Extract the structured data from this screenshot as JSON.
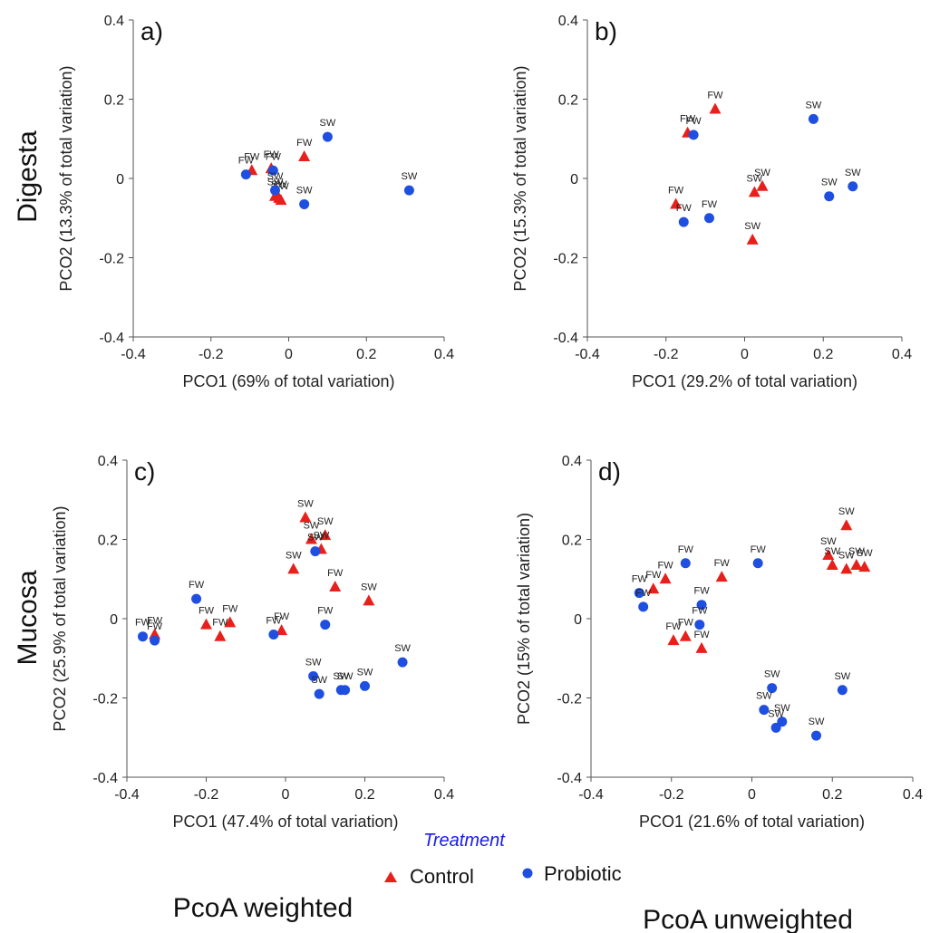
{
  "row_labels": [
    "Digesta",
    "Mucosa"
  ],
  "footers": [
    "PcoA weighted",
    "PcoA unweighted"
  ],
  "legend": {
    "title": "Treatment",
    "items": [
      {
        "name": "Control",
        "marker": "triangle",
        "color": "#e8201c"
      },
      {
        "name": "Probiotic",
        "marker": "circle",
        "color": "#1f4fe0"
      }
    ]
  },
  "chart_data": [
    {
      "type": "scatter",
      "panel": "a)",
      "xlabel": "PCO1 (69% of total variation)",
      "ylabel": "PCO2 (13.3% of total variation)",
      "xlim": [
        -0.4,
        0.4
      ],
      "ylim": [
        -0.4,
        0.4
      ],
      "xticks": [
        -0.4,
        -0.2,
        0,
        0.2,
        0.4
      ],
      "yticks": [
        -0.4,
        -0.2,
        0,
        0.2,
        0.4
      ],
      "series": [
        {
          "name": "Control",
          "points": [
            {
              "x": -0.095,
              "y": 0.02,
              "label": "FW"
            },
            {
              "x": -0.045,
              "y": 0.025,
              "label": "FW"
            },
            {
              "x": 0.04,
              "y": 0.055,
              "label": "FW"
            },
            {
              "x": -0.035,
              "y": -0.045,
              "label": "SW"
            },
            {
              "x": -0.025,
              "y": -0.05,
              "label": "SW"
            },
            {
              "x": -0.02,
              "y": -0.055,
              "label": "SW"
            }
          ]
        },
        {
          "name": "Probiotic",
          "points": [
            {
              "x": -0.11,
              "y": 0.01,
              "label": "FW"
            },
            {
              "x": -0.04,
              "y": 0.02,
              "label": "FW"
            },
            {
              "x": 0.1,
              "y": 0.105,
              "label": "SW"
            },
            {
              "x": 0.04,
              "y": -0.065,
              "label": "SW"
            },
            {
              "x": 0.31,
              "y": -0.03,
              "label": "SW"
            },
            {
              "x": -0.035,
              "y": -0.03,
              "label": "SW"
            }
          ]
        }
      ]
    },
    {
      "type": "scatter",
      "panel": "b)",
      "xlabel": "PCO1 (29.2% of total variation)",
      "ylabel": "PCO2 (15.3% of total variation)",
      "xlim": [
        -0.4,
        0.4
      ],
      "ylim": [
        -0.4,
        0.4
      ],
      "xticks": [
        -0.4,
        -0.2,
        0,
        0.2,
        0.4
      ],
      "yticks": [
        -0.4,
        -0.2,
        0,
        0.2,
        0.4
      ],
      "series": [
        {
          "name": "Control",
          "points": [
            {
              "x": -0.075,
              "y": 0.175,
              "label": "FW"
            },
            {
              "x": -0.145,
              "y": 0.115,
              "label": "FW"
            },
            {
              "x": -0.175,
              "y": -0.065,
              "label": "FW"
            },
            {
              "x": 0.025,
              "y": -0.035,
              "label": "SW"
            },
            {
              "x": 0.045,
              "y": -0.02,
              "label": "SW"
            },
            {
              "x": 0.02,
              "y": -0.155,
              "label": "SW"
            }
          ]
        },
        {
          "name": "Probiotic",
          "points": [
            {
              "x": -0.13,
              "y": 0.11,
              "label": "FW"
            },
            {
              "x": -0.155,
              "y": -0.11,
              "label": "FW"
            },
            {
              "x": -0.09,
              "y": -0.1,
              "label": "FW"
            },
            {
              "x": 0.175,
              "y": 0.15,
              "label": "SW"
            },
            {
              "x": 0.215,
              "y": -0.045,
              "label": "SW"
            },
            {
              "x": 0.275,
              "y": -0.02,
              "label": "SW"
            }
          ]
        }
      ]
    },
    {
      "type": "scatter",
      "panel": "c)",
      "xlabel": "PCO1 (47.4% of total variation)",
      "ylabel": "PCO2 (25.9% of total variation)",
      "xlim": [
        -0.4,
        0.4
      ],
      "ylim": [
        -0.4,
        0.4
      ],
      "xticks": [
        -0.4,
        -0.2,
        0,
        0.2,
        0.4
      ],
      "yticks": [
        -0.4,
        -0.2,
        0,
        0.2,
        0.4
      ],
      "series": [
        {
          "name": "Control",
          "points": [
            {
              "x": 0.05,
              "y": 0.255,
              "label": "SW"
            },
            {
              "x": 0.065,
              "y": 0.2,
              "label": "SW"
            },
            {
              "x": 0.1,
              "y": 0.21,
              "label": "SW"
            },
            {
              "x": 0.09,
              "y": 0.175,
              "label": "SW"
            },
            {
              "x": 0.02,
              "y": 0.125,
              "label": "SW"
            },
            {
              "x": 0.125,
              "y": 0.08,
              "label": "FW"
            },
            {
              "x": 0.21,
              "y": 0.045,
              "label": "SW"
            },
            {
              "x": -0.33,
              "y": -0.04,
              "label": "FW"
            },
            {
              "x": -0.2,
              "y": -0.015,
              "label": "FW"
            },
            {
              "x": -0.14,
              "y": -0.01,
              "label": "FW"
            },
            {
              "x": -0.165,
              "y": -0.045,
              "label": "FW"
            },
            {
              "x": -0.01,
              "y": -0.03,
              "label": "FW"
            }
          ]
        },
        {
          "name": "Probiotic",
          "points": [
            {
              "x": 0.075,
              "y": 0.17,
              "label": "SW"
            },
            {
              "x": -0.225,
              "y": 0.05,
              "label": "FW"
            },
            {
              "x": -0.36,
              "y": -0.045,
              "label": "FW"
            },
            {
              "x": -0.33,
              "y": -0.055,
              "label": "FW"
            },
            {
              "x": -0.03,
              "y": -0.04,
              "label": "FW"
            },
            {
              "x": 0.1,
              "y": -0.015,
              "label": "FW"
            },
            {
              "x": 0.07,
              "y": -0.145,
              "label": "SW"
            },
            {
              "x": 0.085,
              "y": -0.19,
              "label": "SW"
            },
            {
              "x": 0.14,
              "y": -0.18,
              "label": "SW"
            },
            {
              "x": 0.15,
              "y": -0.18,
              "label": "SW"
            },
            {
              "x": 0.2,
              "y": -0.17,
              "label": "SW"
            },
            {
              "x": 0.295,
              "y": -0.11,
              "label": "SW"
            }
          ]
        }
      ]
    },
    {
      "type": "scatter",
      "panel": "d)",
      "xlabel": "PCO1 (21.6% of total variation)",
      "ylabel": "PCO2 (15% of total variation)",
      "xlim": [
        -0.4,
        0.4
      ],
      "ylim": [
        -0.4,
        0.4
      ],
      "xticks": [
        -0.4,
        -0.2,
        0,
        0.2,
        0.4
      ],
      "yticks": [
        -0.4,
        -0.2,
        0,
        0.2,
        0.4
      ],
      "series": [
        {
          "name": "Control",
          "points": [
            {
              "x": -0.215,
              "y": 0.1,
              "label": "FW"
            },
            {
              "x": -0.245,
              "y": 0.075,
              "label": "FW"
            },
            {
              "x": -0.075,
              "y": 0.105,
              "label": "FW"
            },
            {
              "x": -0.195,
              "y": -0.055,
              "label": "FW"
            },
            {
              "x": -0.165,
              "y": -0.045,
              "label": "FW"
            },
            {
              "x": -0.125,
              "y": -0.075,
              "label": "FW"
            },
            {
              "x": 0.235,
              "y": 0.235,
              "label": "SW"
            },
            {
              "x": 0.19,
              "y": 0.16,
              "label": "SW"
            },
            {
              "x": 0.2,
              "y": 0.135,
              "label": "SW"
            },
            {
              "x": 0.235,
              "y": 0.125,
              "label": "SW"
            },
            {
              "x": 0.26,
              "y": 0.135,
              "label": "SW"
            },
            {
              "x": 0.28,
              "y": 0.13,
              "label": "SW"
            }
          ]
        },
        {
          "name": "Probiotic",
          "points": [
            {
              "x": -0.165,
              "y": 0.14,
              "label": "FW"
            },
            {
              "x": 0.015,
              "y": 0.14,
              "label": "FW"
            },
            {
              "x": -0.28,
              "y": 0.065,
              "label": "FW"
            },
            {
              "x": -0.27,
              "y": 0.03,
              "label": "FW"
            },
            {
              "x": -0.125,
              "y": 0.035,
              "label": "FW"
            },
            {
              "x": -0.13,
              "y": -0.015,
              "label": "FW"
            },
            {
              "x": 0.05,
              "y": -0.175,
              "label": "SW"
            },
            {
              "x": 0.03,
              "y": -0.23,
              "label": "SW"
            },
            {
              "x": 0.075,
              "y": -0.26,
              "label": "SW"
            },
            {
              "x": 0.06,
              "y": -0.275,
              "label": "SW"
            },
            {
              "x": 0.16,
              "y": -0.295,
              "label": "SW"
            },
            {
              "x": 0.225,
              "y": -0.18,
              "label": "SW"
            }
          ]
        }
      ]
    }
  ]
}
